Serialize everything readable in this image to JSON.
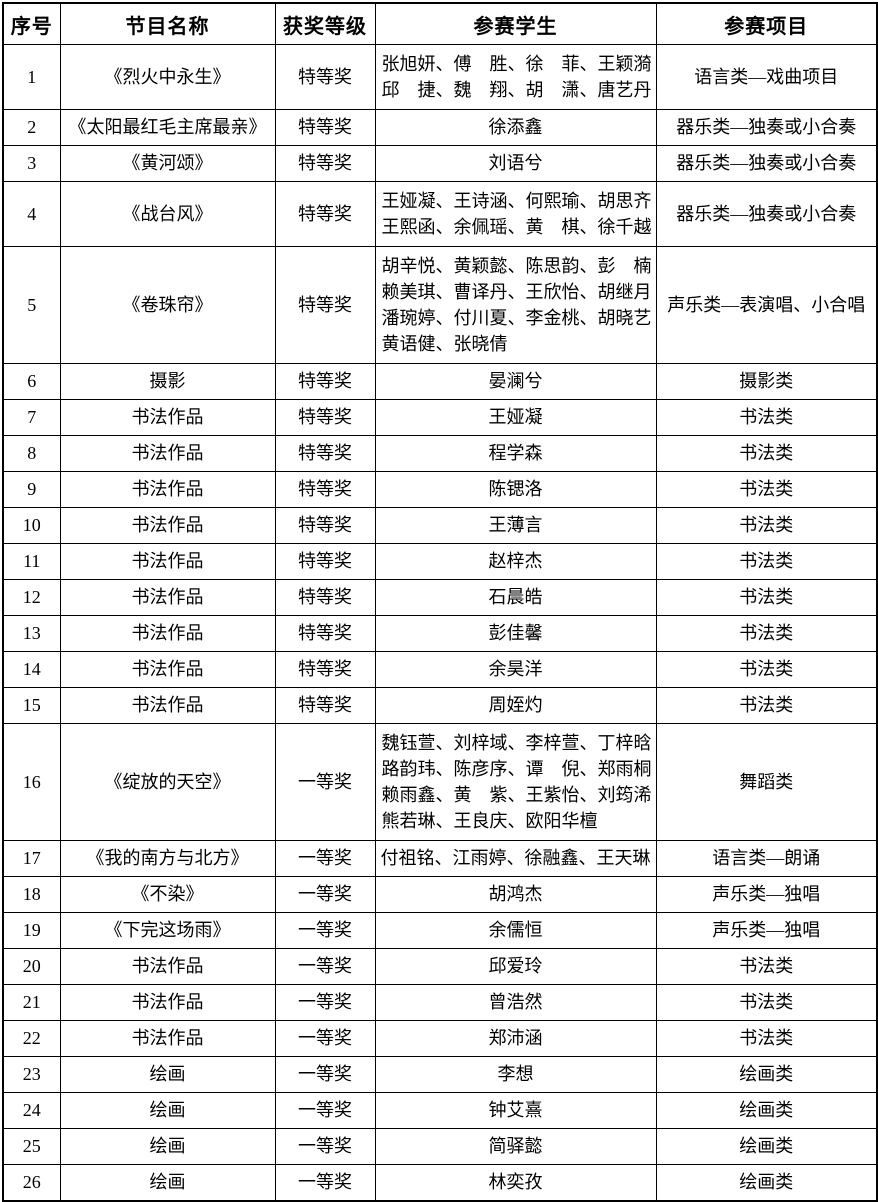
{
  "table": {
    "headers": [
      "序号",
      "节目名称",
      "获奖等级",
      "参赛学生",
      "参赛项目"
    ],
    "rows": [
      {
        "num": "1",
        "name": "《烈火中永生》",
        "award": "特等奖",
        "students": [
          "张旭妍、傅　胜、徐　菲、王颖漪",
          "邱　捷、魏　翔、胡　潇、唐艺丹"
        ],
        "category": "语言类—戏曲项目"
      },
      {
        "num": "2",
        "name": "《太阳最红毛主席最亲》",
        "award": "特等奖",
        "students": [
          "徐添鑫"
        ],
        "category": "器乐类—独奏或小合奏"
      },
      {
        "num": "3",
        "name": "《黄河颂》",
        "award": "特等奖",
        "students": [
          "刘语兮"
        ],
        "category": "器乐类—独奏或小合奏"
      },
      {
        "num": "4",
        "name": "《战台风》",
        "award": "特等奖",
        "students": [
          "王娅凝、王诗涵、何熙瑜、胡思齐",
          "王熙函、余佩瑶、黄　棋、徐千越"
        ],
        "category": "器乐类—独奏或小合奏"
      },
      {
        "num": "5",
        "name": "《卷珠帘》",
        "award": "特等奖",
        "students": [
          "胡辛悦、黄颖懿、陈思韵、彭　楠",
          "赖美琪、曹译丹、王欣怡、胡继月",
          "潘琬婷、付川夏、李金桃、胡晓艺",
          "黄语健、张晓倩"
        ],
        "category": "声乐类—表演唱、小合唱"
      },
      {
        "num": "6",
        "name": "摄影",
        "award": "特等奖",
        "students": [
          "晏澜兮"
        ],
        "category": "摄影类"
      },
      {
        "num": "7",
        "name": "书法作品",
        "award": "特等奖",
        "students": [
          "王娅凝"
        ],
        "category": "书法类"
      },
      {
        "num": "8",
        "name": "书法作品",
        "award": "特等奖",
        "students": [
          "程学森"
        ],
        "category": "书法类"
      },
      {
        "num": "9",
        "name": "书法作品",
        "award": "特等奖",
        "students": [
          "陈锶洛"
        ],
        "category": "书法类"
      },
      {
        "num": "10",
        "name": "书法作品",
        "award": "特等奖",
        "students": [
          "王薄言"
        ],
        "category": "书法类"
      },
      {
        "num": "11",
        "name": "书法作品",
        "award": "特等奖",
        "students": [
          "赵梓杰"
        ],
        "category": "书法类"
      },
      {
        "num": "12",
        "name": "书法作品",
        "award": "特等奖",
        "students": [
          "石晨皓"
        ],
        "category": "书法类"
      },
      {
        "num": "13",
        "name": "书法作品",
        "award": "特等奖",
        "students": [
          "彭佳馨"
        ],
        "category": "书法类"
      },
      {
        "num": "14",
        "name": "书法作品",
        "award": "特等奖",
        "students": [
          "余昊洋"
        ],
        "category": "书法类"
      },
      {
        "num": "15",
        "name": "书法作品",
        "award": "特等奖",
        "students": [
          "周姪灼"
        ],
        "category": "书法类"
      },
      {
        "num": "16",
        "name": "《绽放的天空》",
        "award": "一等奖",
        "students": [
          "魏钰萱、刘梓域、李梓萱、丁梓晗",
          "路韵玮、陈彦序、谭　倪、郑雨桐",
          "赖雨鑫、黄　紫、王紫怡、刘筠浠",
          "熊若琳、王良庆、欧阳华檀"
        ],
        "category": "舞蹈类"
      },
      {
        "num": "17",
        "name": "《我的南方与北方》",
        "award": "一等奖",
        "students": [
          "付祖铭、江雨婷、徐融鑫、王天琳"
        ],
        "category": "语言类—朗诵"
      },
      {
        "num": "18",
        "name": "《不染》",
        "award": "一等奖",
        "students": [
          "胡鸿杰"
        ],
        "category": "声乐类—独唱"
      },
      {
        "num": "19",
        "name": "《下完这场雨》",
        "award": "一等奖",
        "students": [
          "余儒恒"
        ],
        "category": "声乐类—独唱"
      },
      {
        "num": "20",
        "name": "书法作品",
        "award": "一等奖",
        "students": [
          "邱爱玲"
        ],
        "category": "书法类"
      },
      {
        "num": "21",
        "name": "书法作品",
        "award": "一等奖",
        "students": [
          "曾浩然"
        ],
        "category": "书法类"
      },
      {
        "num": "22",
        "name": "书法作品",
        "award": "一等奖",
        "students": [
          "郑沛涵"
        ],
        "category": "书法类"
      },
      {
        "num": "23",
        "name": "绘画",
        "award": "一等奖",
        "students": [
          "李想"
        ],
        "category": "绘画类"
      },
      {
        "num": "24",
        "name": "绘画",
        "award": "一等奖",
        "students": [
          "钟艾熹"
        ],
        "category": "绘画类"
      },
      {
        "num": "25",
        "name": "绘画",
        "award": "一等奖",
        "students": [
          "简驿懿"
        ],
        "category": "绘画类"
      },
      {
        "num": "26",
        "name": "绘画",
        "award": "一等奖",
        "students": [
          "林奕孜"
        ],
        "category": "绘画类"
      }
    ]
  },
  "colors": {
    "border": "#000000",
    "text": "#000000",
    "background": "#ffffff"
  }
}
